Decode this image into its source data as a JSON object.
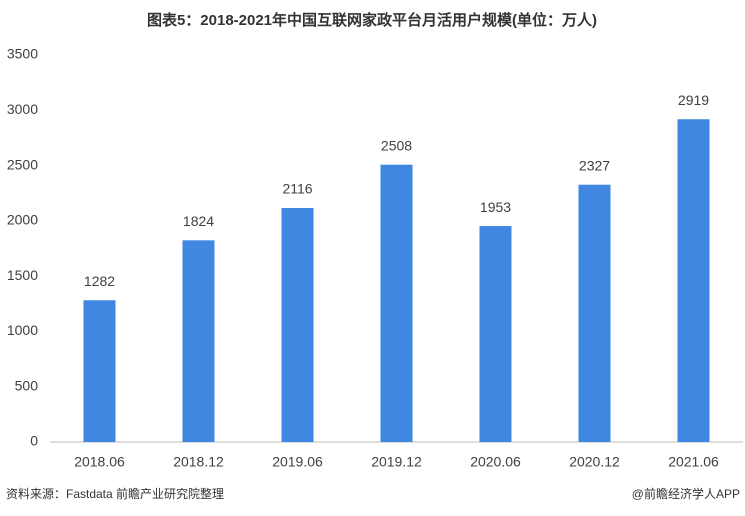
{
  "chart_data": {
    "type": "bar",
    "title": "图表5：2018-2021年中国互联网家政平台月活用户规模(单位：万人)",
    "categories": [
      "2018.06",
      "2018.12",
      "2019.06",
      "2019.12",
      "2020.06",
      "2020.12",
      "2021.06"
    ],
    "values": [
      1282,
      1824,
      2116,
      2508,
      1953,
      2327,
      2919
    ],
    "color": "#3f87e0",
    "ylim": [
      0,
      3500
    ],
    "yticks": [
      0,
      500,
      1000,
      1500,
      2000,
      2500,
      3000,
      3500
    ],
    "grid": false,
    "source": "资料来源：Fastdata 前瞻产业研究院整理",
    "credit": "@前瞻经济学人APP"
  }
}
